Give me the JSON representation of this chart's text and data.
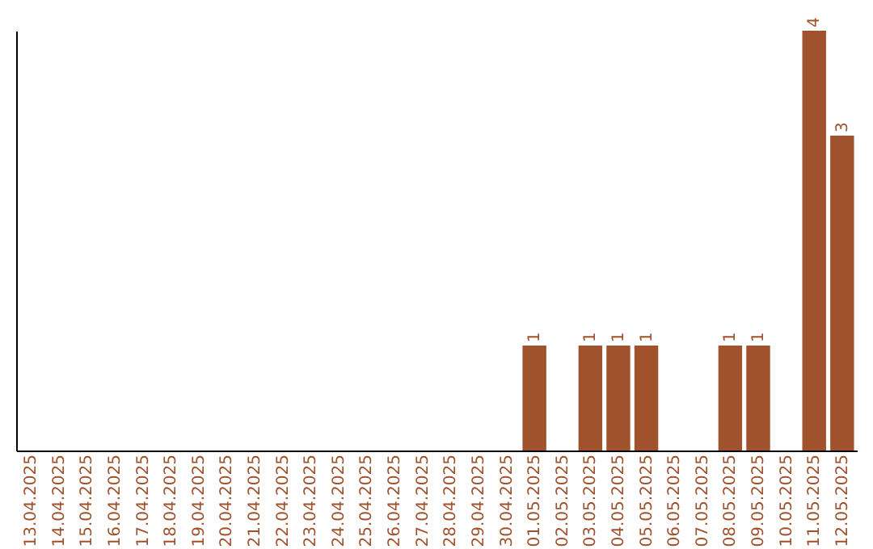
{
  "chart_data": {
    "type": "bar",
    "categories": [
      "13.04.2025",
      "14.04.2025",
      "15.04.2025",
      "16.04.2025",
      "17.04.2025",
      "18.04.2025",
      "19.04.2025",
      "20.04.2025",
      "21.04.2025",
      "22.04.2025",
      "23.04.2025",
      "24.04.2025",
      "25.04.2025",
      "26.04.2025",
      "27.04.2025",
      "28.04.2025",
      "29.04.2025",
      "30.04.2025",
      "01.05.2025",
      "02.05.2025",
      "03.05.2025",
      "04.05.2025",
      "05.05.2025",
      "06.05.2025",
      "07.05.2025",
      "08.05.2025",
      "09.05.2025",
      "10.05.2025",
      "11.05.2025",
      "12.05.2025"
    ],
    "values": [
      null,
      null,
      null,
      null,
      null,
      null,
      null,
      null,
      null,
      null,
      null,
      null,
      null,
      null,
      null,
      null,
      null,
      null,
      1,
      null,
      1,
      1,
      1,
      null,
      null,
      1,
      1,
      null,
      4,
      3
    ],
    "value_labels": [
      null,
      null,
      null,
      null,
      null,
      null,
      null,
      null,
      null,
      null,
      null,
      null,
      null,
      null,
      null,
      null,
      null,
      null,
      "1",
      null,
      "1",
      "1",
      "1",
      null,
      null,
      "1",
      "1",
      null,
      "4",
      "3"
    ],
    "color": "#a0522d",
    "tick_labels": "x",
    "grid": false
  }
}
